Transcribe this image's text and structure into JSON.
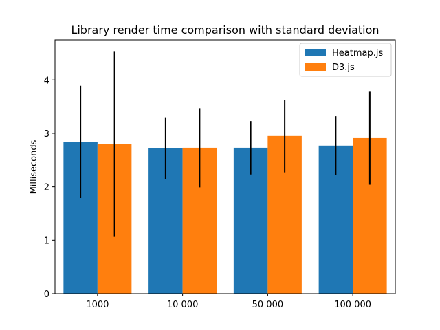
{
  "chart_data": {
    "type": "bar",
    "title": "Library render time comparison with standard deviation",
    "xlabel": "",
    "ylabel": "Milliseconds",
    "categories": [
      "1000",
      "10 000",
      "50 000",
      "100 000"
    ],
    "ylim": [
      0,
      4.75
    ],
    "yticks": [
      0,
      1,
      2,
      3,
      4
    ],
    "grid": false,
    "legend_position": "upper right",
    "series": [
      {
        "name": "Heatmap.js",
        "color": "#1f77b4",
        "values": [
          2.84,
          2.72,
          2.73,
          2.77
        ],
        "errors": [
          1.05,
          0.58,
          0.5,
          0.55
        ]
      },
      {
        "name": "D3.js",
        "color": "#ff7f0e",
        "values": [
          2.8,
          2.73,
          2.95,
          2.91
        ],
        "errors": [
          1.74,
          0.74,
          0.68,
          0.87
        ]
      }
    ],
    "error_bar_color": "#000000"
  }
}
